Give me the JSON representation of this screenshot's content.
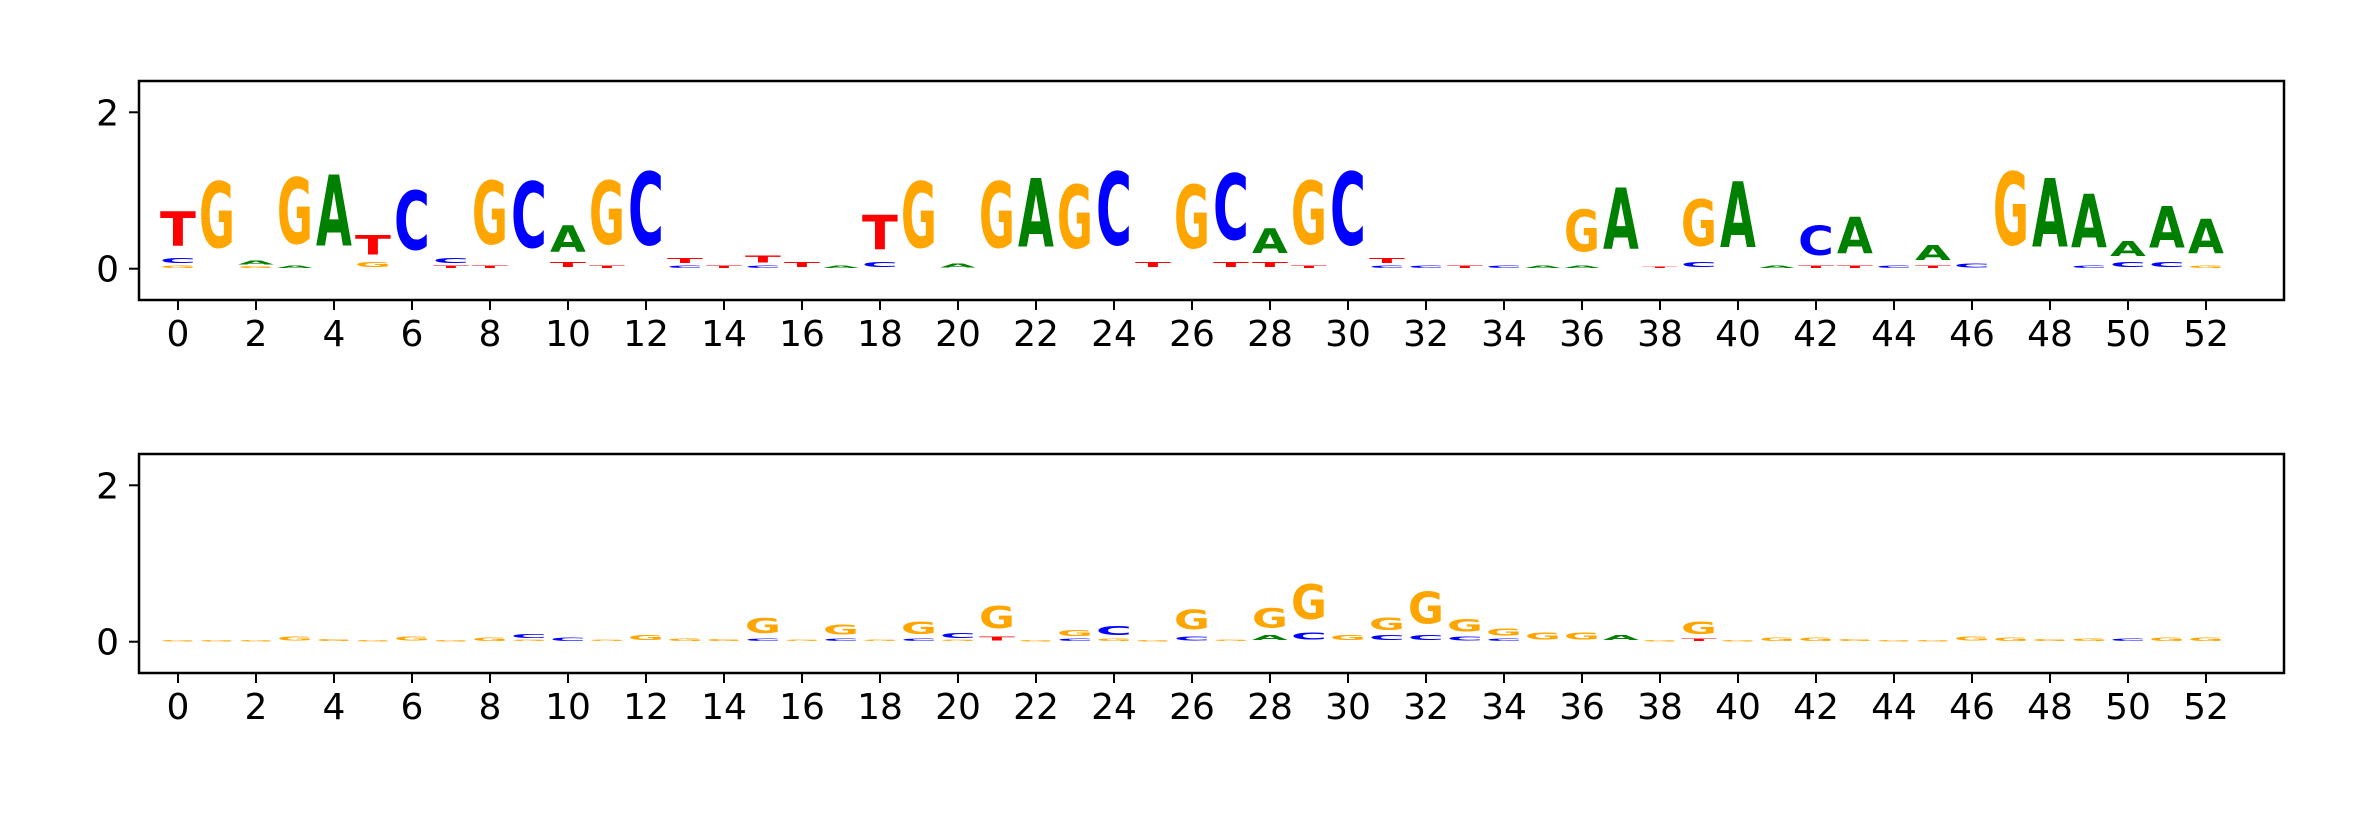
{
  "colors": {
    "A": "#008000",
    "C": "#0000ff",
    "G": "#ffa500",
    "T": "#ff0000"
  },
  "chart_data": [
    {
      "type": "sequence-logo",
      "title": "",
      "xlabel": "",
      "ylabel": "",
      "xlim": [
        -1,
        54
      ],
      "ylim": [
        -0.4,
        2.4
      ],
      "x_ticks": [
        "0",
        "2",
        "4",
        "6",
        "8",
        "10",
        "12",
        "14",
        "16",
        "18",
        "20",
        "22",
        "24",
        "26",
        "28",
        "30",
        "32",
        "34",
        "36",
        "38",
        "40",
        "42",
        "44",
        "46",
        "48",
        "50",
        "52"
      ],
      "y_ticks": [
        "0",
        "2"
      ],
      "positions": [
        {
          "T": 0.7,
          "C": 0.1,
          "G": 0.05
        },
        {
          "G": 1.35
        },
        {
          "A": 0.08,
          "G": 0.04
        },
        {
          "G": 1.35,
          "A": 0.05
        },
        {
          "A": 1.45
        },
        {
          "T": 0.4,
          "G": 0.1
        },
        {
          "C": 1.2
        },
        {
          "C": 0.1,
          "T": 0.05
        },
        {
          "G": 1.3,
          "T": 0.05
        },
        {
          "C": 1.35
        },
        {
          "A": 0.55,
          "T": 0.1
        },
        {
          "G": 1.3,
          "T": 0.05
        },
        {
          "C": 1.5
        },
        {
          "T": 0.1,
          "C": 0.05
        },
        {
          "T": 0.05
        },
        {
          "T": 0.15,
          "C": 0.05
        },
        {
          "T": 0.1
        },
        {
          "A": 0.05
        },
        {
          "T": 0.7,
          "C": 0.1
        },
        {
          "G": 1.35
        },
        {
          "A": 0.08
        },
        {
          "G": 1.35
        },
        {
          "A": 1.4
        },
        {
          "G": 1.3
        },
        {
          "C": 1.5
        },
        {
          "T": 0.1
        },
        {
          "G": 1.3
        },
        {
          "C": 1.35,
          "T": 0.1
        },
        {
          "A": 0.5,
          "T": 0.1
        },
        {
          "G": 1.3,
          "T": 0.05
        },
        {
          "C": 1.5
        },
        {
          "T": 0.1,
          "C": 0.05
        },
        {
          "C": 0.05
        },
        {
          "T": 0.05
        },
        {
          "C": 0.05
        },
        {
          "A": 0.05
        },
        {
          "G": 0.85,
          "A": 0.05
        },
        {
          "A": 1.25
        },
        {
          "T": 0.03
        },
        {
          "G": 0.95,
          "C": 0.1
        },
        {
          "A": 1.35
        },
        {
          "A": 0.05
        },
        {
          "C": 0.6,
          "T": 0.05
        },
        {
          "A": 0.75,
          "T": 0.05
        },
        {
          "C": 0.05
        },
        {
          "A": 0.3,
          "T": 0.05
        },
        {
          "C": 0.08
        },
        {
          "G": 1.5
        },
        {
          "A": 1.4
        },
        {
          "A": 1.1,
          "C": 0.05
        },
        {
          "A": 0.3,
          "C": 0.1
        },
        {
          "A": 0.85,
          "C": 0.1
        },
        {
          "A": 0.7,
          "G": 0.05
        }
      ]
    },
    {
      "type": "sequence-logo",
      "title": "",
      "xlabel": "",
      "ylabel": "",
      "xlim": [
        -1,
        54
      ],
      "ylim": [
        -0.4,
        2.4
      ],
      "x_ticks": [
        "0",
        "2",
        "4",
        "6",
        "8",
        "10",
        "12",
        "14",
        "16",
        "18",
        "20",
        "22",
        "24",
        "26",
        "28",
        "30",
        "32",
        "34",
        "36",
        "38",
        "40",
        "42",
        "44",
        "46",
        "48",
        "50",
        "52"
      ],
      "y_ticks": [
        "0",
        "2"
      ],
      "positions": [
        {
          "G": 0.02
        },
        {
          "G": 0.02
        },
        {
          "G": 0.02
        },
        {
          "G": 0.08
        },
        {
          "G": 0.04
        },
        {
          "G": 0.02
        },
        {
          "G": 0.08
        },
        {
          "G": 0.02
        },
        {
          "G": 0.06
        },
        {
          "C": 0.08,
          "G": 0.03
        },
        {
          "C": 0.06
        },
        {
          "G": 0.03
        },
        {
          "G": 0.1
        },
        {
          "G": 0.05
        },
        {
          "G": 0.04
        },
        {
          "G": 0.3,
          "C": 0.05
        },
        {
          "G": 0.03
        },
        {
          "G": 0.2,
          "C": 0.05
        },
        {
          "G": 0.03
        },
        {
          "G": 0.25,
          "C": 0.05
        },
        {
          "C": 0.1,
          "G": 0.03
        },
        {
          "G": 0.45,
          "T": 0.08
        },
        {
          "G": 0.02
        },
        {
          "G": 0.12,
          "C": 0.05
        },
        {
          "C": 0.18,
          "G": 0.05
        },
        {
          "G": 0.02
        },
        {
          "G": 0.4,
          "C": 0.08
        },
        {
          "G": 0.03
        },
        {
          "G": 0.4,
          "A": 0.1
        },
        {
          "G": 0.7,
          "C": 0.15
        },
        {
          "G": 0.1
        },
        {
          "G": 0.25,
          "C": 0.1
        },
        {
          "G": 0.65,
          "C": 0.1
        },
        {
          "G": 0.25,
          "C": 0.08
        },
        {
          "G": 0.15,
          "C": 0.05
        },
        {
          "G": 0.15
        },
        {
          "G": 0.15
        },
        {
          "A": 0.1
        },
        {
          "G": 0.02
        },
        {
          "G": 0.25,
          "T": 0.05
        },
        {
          "G": 0.02
        },
        {
          "G": 0.06
        },
        {
          "G": 0.06
        },
        {
          "G": 0.04
        },
        {
          "G": 0.02
        },
        {
          "G": 0.02
        },
        {
          "G": 0.08
        },
        {
          "G": 0.06
        },
        {
          "G": 0.04
        },
        {
          "G": 0.05
        },
        {
          "C": 0.05
        },
        {
          "G": 0.06
        },
        {
          "G": 0.06
        }
      ]
    }
  ]
}
